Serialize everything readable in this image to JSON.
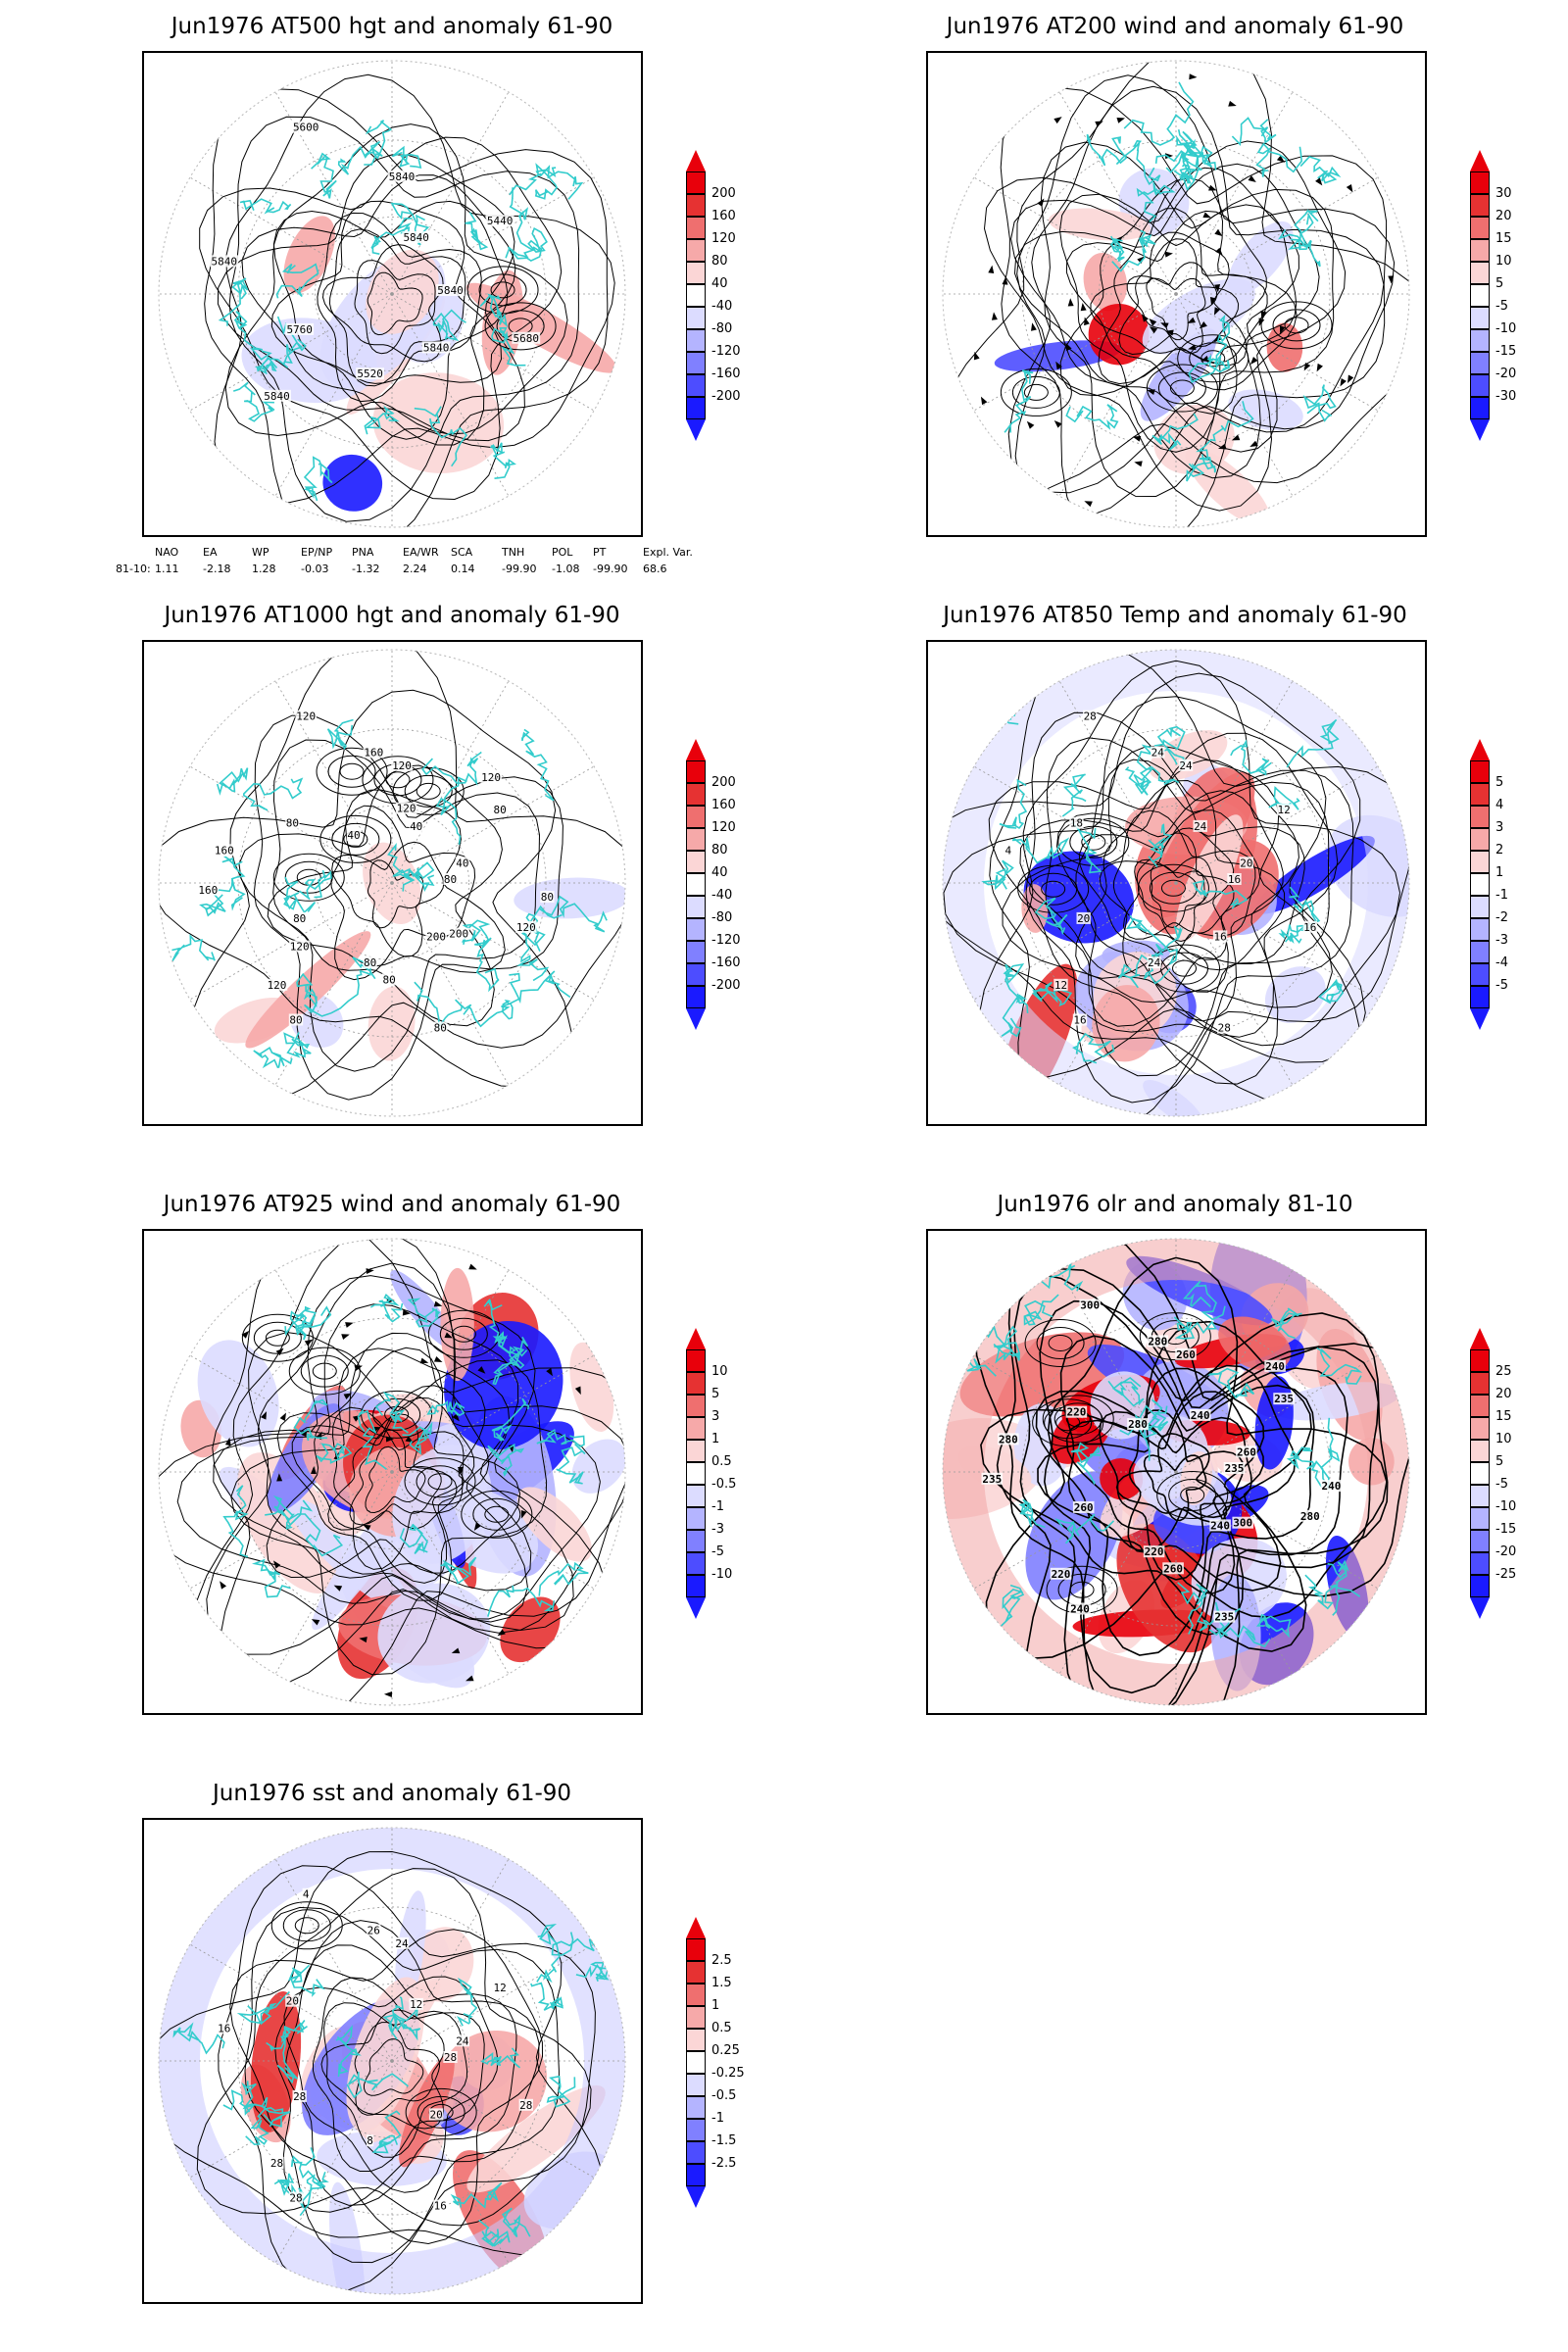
{
  "panels": [
    {
      "id": "p500",
      "title": "Jun1976 AT500 hgt and anomaly 61-90",
      "colorbar": {
        "levels": [
          "200",
          "160",
          "120",
          "80",
          "40",
          "-40",
          "-80",
          "-120",
          "-160",
          "-200"
        ]
      },
      "contour_labels": [
        "5840",
        "5840",
        "5840",
        "5840",
        "5840",
        "5440",
        "5520",
        "5600",
        "5680",
        "5760",
        "5840"
      ]
    },
    {
      "id": "p200",
      "title": "Jun1976 AT200 wind and anomaly 61-90",
      "colorbar": {
        "levels": [
          "30",
          "20",
          "15",
          "10",
          "5",
          "-5",
          "-10",
          "-15",
          "-20",
          "-30"
        ]
      },
      "contour_labels": []
    },
    {
      "id": "p1000",
      "title": "Jun1976 AT1000 hgt and anomaly 61-90",
      "colorbar": {
        "levels": [
          "200",
          "160",
          "120",
          "80",
          "40",
          "-40",
          "-80",
          "-120",
          "-160",
          "-200"
        ]
      },
      "contour_labels": [
        "80",
        "120",
        "120",
        "200",
        "160",
        "80",
        "80",
        "120",
        "120",
        "80",
        "40",
        "80",
        "80",
        "40",
        "80",
        "160",
        "200",
        "160",
        "120",
        "80",
        "40",
        "80",
        "120",
        "120"
      ]
    },
    {
      "id": "p850",
      "title": "Jun1976 AT850 Temp and anomaly 61-90",
      "colorbar": {
        "levels": [
          "5",
          "4",
          "3",
          "2",
          "1",
          "-1",
          "-2",
          "-3",
          "-4",
          "-5"
        ]
      },
      "contour_labels": [
        "16",
        "12",
        "24",
        "16",
        "4",
        "12",
        "24",
        "28",
        "16",
        "20",
        "24",
        "28",
        "18",
        "20",
        "16",
        "24"
      ]
    },
    {
      "id": "p925",
      "title": "Jun1976 AT925 wind and anomaly 61-90",
      "colorbar": {
        "levels": [
          "10",
          "5",
          "3",
          "1",
          "0.5",
          "-0.5",
          "-1",
          "-3",
          "-5",
          "-10"
        ]
      },
      "contour_labels": []
    },
    {
      "id": "polr",
      "title": "Jun1976 olr and anomaly 81-10",
      "colorbar": {
        "levels": [
          "25",
          "20",
          "15",
          "10",
          "5",
          "-5",
          "-10",
          "-15",
          "-20",
          "-25"
        ]
      },
      "contour_labels": [
        "235",
        "220",
        "260",
        "240",
        "280",
        "235",
        "220",
        "300",
        "280",
        "260",
        "240",
        "235",
        "220",
        "260",
        "240",
        "280",
        "300",
        "235",
        "240",
        "260",
        "280",
        "240"
      ]
    },
    {
      "id": "psst",
      "title": "Jun1976 sst and anomaly 61-90",
      "colorbar": {
        "levels": [
          "2.5",
          "1.5",
          "1",
          "0.5",
          "0.25",
          "-0.25",
          "-0.5",
          "-1",
          "-1.5",
          "-2.5"
        ]
      },
      "contour_labels": [
        "28",
        "28",
        "24",
        "20",
        "16",
        "12",
        "8",
        "4",
        "28",
        "28",
        "12",
        "16",
        "20",
        "24",
        "28",
        "26"
      ]
    }
  ],
  "index_table": {
    "headers": [
      "NAO",
      "EA",
      "WP",
      "EP/NP",
      "PNA",
      "EA/WR",
      "SCA",
      "TNH",
      "POL",
      "PT",
      "Expl. Var."
    ],
    "row_label": "81-10:",
    "values": [
      "1.11",
      "-2.18",
      "1.28",
      "-0.03",
      "-1.32",
      "2.24",
      "0.14",
      "-99.90",
      "-1.08",
      "-99.90",
      "68.6"
    ]
  },
  "colors": {
    "coast": "#33cccc",
    "contour": "#000000",
    "warm_strong": "#e8000b",
    "cold_strong": "#1a1aff"
  }
}
